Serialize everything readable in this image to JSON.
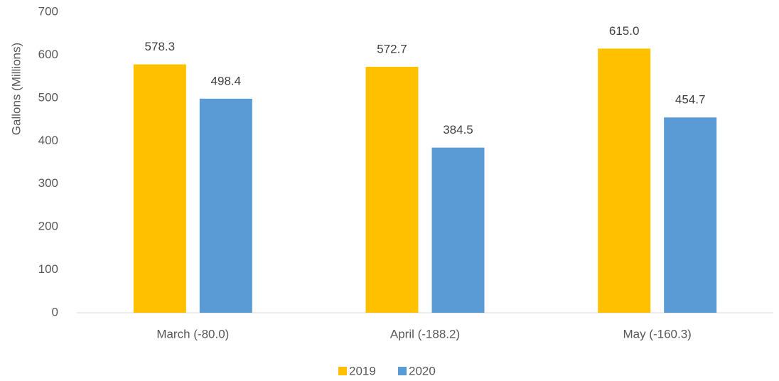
{
  "chart_data": {
    "type": "bar",
    "y_label": "Gallons (Millions)",
    "categories": [
      "March (-80.0)",
      "April (-188.2)",
      "May (-160.3)"
    ],
    "series": [
      {
        "name": "2019",
        "color": "#ffc000",
        "values": [
          578.3,
          572.7,
          615.0
        ],
        "value_labels": [
          "578.3",
          "572.7",
          "615.0"
        ]
      },
      {
        "name": "2020",
        "color": "#5b9bd5",
        "values": [
          498.4,
          384.5,
          454.7
        ],
        "value_labels": [
          "498.4",
          "384.5",
          "454.7"
        ]
      }
    ],
    "ylim": [
      0,
      700
    ],
    "yticks": [
      0,
      100,
      200,
      300,
      400,
      500,
      600,
      700
    ],
    "grid": false,
    "legend": "bottom"
  }
}
